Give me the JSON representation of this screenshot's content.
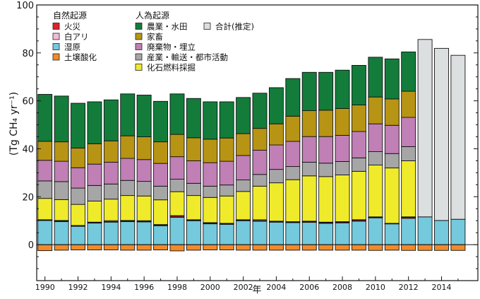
{
  "chart_data": {
    "type": "bar",
    "stacked": true,
    "title": "",
    "xlabel": "年",
    "ylabel": "(Tg CH₄ yr⁻¹)",
    "ylim": [
      -15,
      100
    ],
    "xlim": [
      1989.5,
      2016.2
    ],
    "yticks": [
      0,
      20,
      40,
      60,
      80,
      100
    ],
    "ytick_labels": [
      "0",
      "20",
      "40",
      "60",
      "80",
      "100"
    ],
    "xticks": [
      1990,
      1992,
      1994,
      1996,
      1998,
      2000,
      2002,
      2004,
      2006,
      2008,
      2010,
      2012,
      2014
    ],
    "xtick_labels": [
      "1990",
      "1992",
      "1994",
      "1996",
      "1998",
      "2000",
      "2002",
      "2004",
      "2006",
      "2008",
      "2010",
      "2012",
      "2014"
    ],
    "grid": false,
    "legend_placement": "top-left",
    "legend_groups": [
      {
        "title": "自然起源",
        "keys": [
          "fire",
          "termite",
          "wetland",
          "soil"
        ]
      },
      {
        "title": "人為起源",
        "keys": [
          "agri",
          "livestock",
          "waste",
          "industry",
          "fossil"
        ]
      },
      {
        "title": "",
        "keys": [
          "total"
        ]
      }
    ],
    "series_meta": {
      "soil": {
        "name": "土壌酸化",
        "color": "#f28a2a"
      },
      "wetland": {
        "name": "湿原",
        "color": "#74c9dc"
      },
      "fire": {
        "name": "火災",
        "color": "#e4202a"
      },
      "termite": {
        "name": "白アリ",
        "color": "#f0bcd8"
      },
      "fossil": {
        "name": "化石燃料採掘",
        "color": "#f0eb2a"
      },
      "industry": {
        "name": "産業・輸送・都市活動",
        "color": "#a6a6a6"
      },
      "waste": {
        "name": "廃棄物・埋立",
        "color": "#c07fb5"
      },
      "livestock": {
        "name": "家畜",
        "color": "#b79414"
      },
      "agri": {
        "name": "農業・水田",
        "color": "#137c3b"
      },
      "total": {
        "name": "合計(推定)",
        "color": "#dcdfe0"
      }
    },
    "stack_order": [
      "wetland",
      "fire",
      "termite",
      "fossil",
      "industry",
      "waste",
      "livestock",
      "agri"
    ],
    "years": [
      1990,
      1991,
      1992,
      1993,
      1994,
      1995,
      1996,
      1997,
      1998,
      1999,
      2000,
      2001,
      2002,
      2003,
      2004,
      2005,
      2006,
      2007,
      2008,
      2009,
      2010,
      2011,
      2012
    ],
    "series": {
      "soil": [
        -2.5,
        -2.3,
        -2.2,
        -2.2,
        -2.2,
        -2.3,
        -2.3,
        -2.2,
        -2.6,
        -2.3,
        -2.2,
        -2.2,
        -2.3,
        -2.3,
        -2.3,
        -2.3,
        -2.3,
        -2.3,
        -2.3,
        -2.3,
        -2.4,
        -2.3,
        -2.4
      ],
      "wetland": [
        10.1,
        9.6,
        7.7,
        9.0,
        9.4,
        9.6,
        9.5,
        7.9,
        11.4,
        10.0,
        8.7,
        8.5,
        10.0,
        9.8,
        9.4,
        9.2,
        9.3,
        8.9,
        9.1,
        9.8,
        11.2,
        8.7,
        11.0
      ],
      "fire": [
        0.2,
        0.2,
        0.1,
        0.2,
        0.2,
        0.2,
        0.2,
        0.2,
        0.5,
        0.2,
        0.2,
        0.3,
        0.2,
        0.2,
        0.3,
        0.3,
        0.3,
        0.3,
        0.3,
        0.4,
        0.2,
        0.1,
        0.4
      ],
      "termite": [
        0.1,
        0.3,
        0.2,
        0.2,
        0.4,
        0.3,
        0.3,
        0.3,
        0.2,
        0.2,
        0.3,
        0.1,
        0.2,
        0.4,
        0.1,
        0.1,
        0.2,
        0.2,
        0.2,
        0.2,
        0.2,
        0.1,
        0.2
      ],
      "fossil": [
        8.9,
        8.7,
        8.8,
        8.8,
        9.0,
        10.4,
        10.3,
        10.3,
        10.0,
        10.1,
        10.5,
        11.4,
        11.8,
        14.0,
        16.0,
        17.5,
        18.9,
        19.0,
        19.5,
        20.2,
        21.6,
        23.1,
        23.4
      ],
      "industry": [
        7.3,
        7.5,
        6.8,
        6.5,
        6.3,
        6.3,
        6.1,
        5.7,
        5.2,
        5.1,
        4.7,
        4.6,
        4.8,
        4.9,
        5.6,
        5.5,
        5.7,
        5.6,
        5.6,
        5.6,
        5.6,
        6.0,
        5.9
      ],
      "waste": [
        8.6,
        8.5,
        8.5,
        8.9,
        9.1,
        9.2,
        9.1,
        9.5,
        9.4,
        9.4,
        9.8,
        9.9,
        10.2,
        10.1,
        10.2,
        10.5,
        10.7,
        11.1,
        10.9,
        11.0,
        11.6,
        11.8,
        12.2
      ],
      "livestock": [
        7.9,
        8.1,
        8.2,
        8.5,
        8.9,
        9.4,
        9.5,
        9.0,
        9.3,
        9.6,
        9.8,
        9.7,
        9.1,
        9.1,
        8.8,
        10.5,
        10.8,
        11.0,
        11.2,
        11.1,
        11.2,
        11.0,
        10.9
      ],
      "agri": [
        19.6,
        19.1,
        18.7,
        17.5,
        17.1,
        17.5,
        17.4,
        16.9,
        16.9,
        16.4,
        15.6,
        15.1,
        15.1,
        14.7,
        15.1,
        15.7,
        16.0,
        15.8,
        16.0,
        16.5,
        16.6,
        16.7,
        16.4
      ]
    },
    "estimated": {
      "years": [
        2013,
        2014,
        2015
      ],
      "wetland": [
        11.6,
        10.1,
        10.6
      ],
      "soil": [
        -2.4,
        -2.4,
        -2.4
      ],
      "total": [
        85.6,
        81.9,
        79.0
      ]
    }
  }
}
